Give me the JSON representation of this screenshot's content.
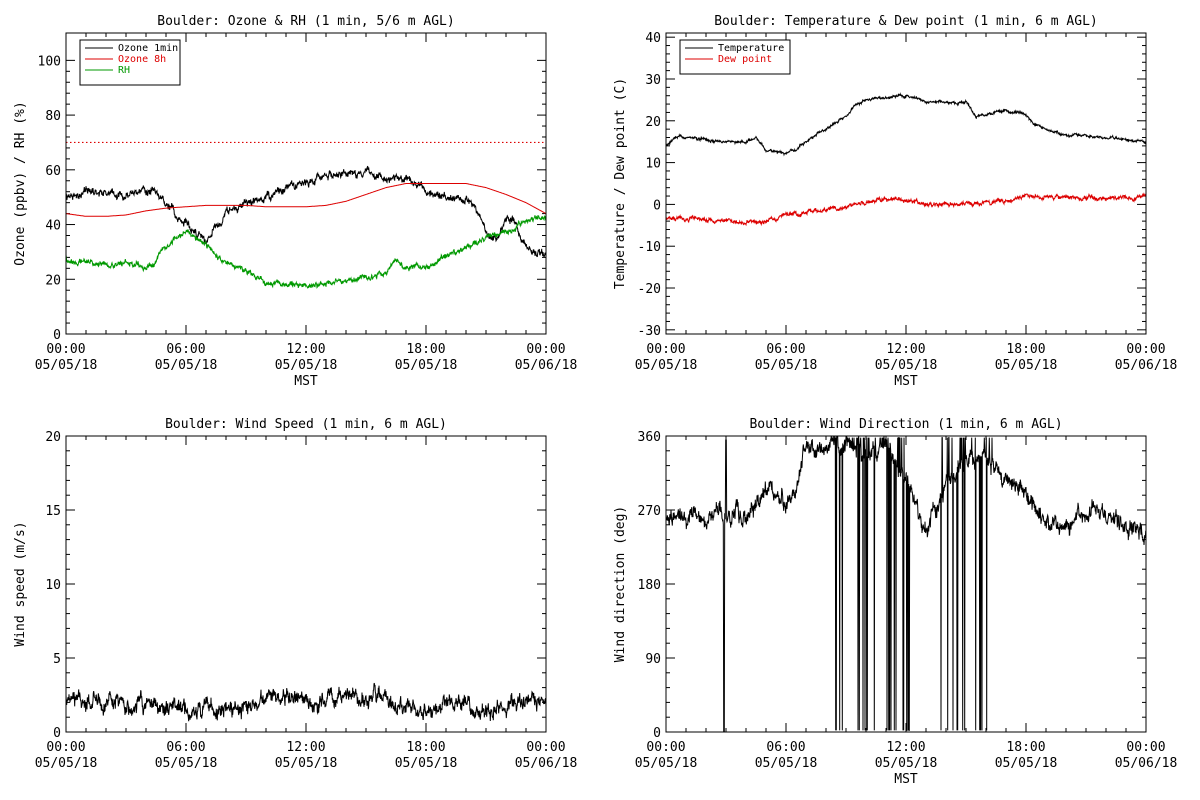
{
  "colors": {
    "black": "#000000",
    "red": "#dd0000",
    "green": "#009900",
    "bg": "#ffffff"
  },
  "x_ticks": [
    {
      "time": "00:00",
      "date": "05/05/18"
    },
    {
      "time": "06:00",
      "date": "05/05/18"
    },
    {
      "time": "12:00",
      "date": "05/05/18"
    },
    {
      "time": "18:00",
      "date": "05/05/18"
    },
    {
      "time": "00:00",
      "date": "05/06/18"
    }
  ],
  "chart_data": [
    {
      "id": "ozone_rh",
      "type": "line",
      "title": "Boulder: Ozone & RH (1 min, 5/6 m AGL)",
      "xlabel": "MST",
      "ylabel": "Ozone (ppbv) / RH (%)",
      "x_range_hours": [
        0,
        24
      ],
      "ylim": [
        0,
        110
      ],
      "y_ticks": [
        0,
        20,
        40,
        60,
        80,
        100
      ],
      "show_xlabel": true,
      "legend": [
        "Ozone 1min",
        "Ozone 8h",
        "RH"
      ],
      "reference_line": {
        "y": 70,
        "style": "dotted",
        "color": "#dd0000"
      },
      "series": [
        {
          "name": "Ozone 1min",
          "color": "#000000",
          "noise": 1.6,
          "points": [
            [
              0,
              50
            ],
            [
              1,
              52
            ],
            [
              2,
              52
            ],
            [
              3,
              50
            ],
            [
              4,
              53
            ],
            [
              4.5,
              51
            ],
            [
              5,
              47
            ],
            [
              5.3,
              46
            ],
            [
              5.5,
              42
            ],
            [
              6,
              40
            ],
            [
              6.5,
              38
            ],
            [
              7,
              33
            ],
            [
              7.4,
              38
            ],
            [
              8,
              44
            ],
            [
              9,
              48
            ],
            [
              10,
              50
            ],
            [
              11,
              53
            ],
            [
              12,
              56
            ],
            [
              13,
              58
            ],
            [
              14,
              58
            ],
            [
              14.5,
              58
            ],
            [
              15,
              60
            ],
            [
              15.5,
              58
            ],
            [
              16,
              56
            ],
            [
              17,
              57
            ],
            [
              17.5,
              55
            ],
            [
              18,
              52
            ],
            [
              19,
              50
            ],
            [
              20,
              49
            ],
            [
              20.5,
              46
            ],
            [
              21,
              38
            ],
            [
              21.5,
              34
            ],
            [
              22,
              42
            ],
            [
              22.5,
              40
            ],
            [
              23,
              31
            ],
            [
              24,
              30
            ]
          ]
        },
        {
          "name": "Ozone 8h",
          "color": "#dd0000",
          "noise": 0,
          "points": [
            [
              0,
              44
            ],
            [
              1,
              43
            ],
            [
              2,
              43
            ],
            [
              3,
              43.5
            ],
            [
              4,
              45
            ],
            [
              5,
              46
            ],
            [
              6,
              46.5
            ],
            [
              7,
              47
            ],
            [
              8,
              47
            ],
            [
              9,
              47
            ],
            [
              10,
              46.5
            ],
            [
              11,
              46.5
            ],
            [
              12,
              46.5
            ],
            [
              13,
              47
            ],
            [
              14,
              48.5
            ],
            [
              15,
              51
            ],
            [
              16,
              53.5
            ],
            [
              17,
              55
            ],
            [
              18,
              55
            ],
            [
              19,
              55
            ],
            [
              20,
              55
            ],
            [
              21,
              53.5
            ],
            [
              22,
              51
            ],
            [
              23,
              48
            ],
            [
              24,
              44
            ]
          ]
        },
        {
          "name": "RH",
          "color": "#009900",
          "noise": 1.1,
          "points": [
            [
              0,
              28
            ],
            [
              0.5,
              26
            ],
            [
              1,
              26
            ],
            [
              2,
              25
            ],
            [
              3,
              26
            ],
            [
              4,
              24
            ],
            [
              4.5,
              26
            ],
            [
              5,
              32
            ],
            [
              5.5,
              35
            ],
            [
              6,
              37
            ],
            [
              6.5,
              35
            ],
            [
              7,
              33
            ],
            [
              7.5,
              29
            ],
            [
              8,
              26
            ],
            [
              9,
              23
            ],
            [
              10,
              19
            ],
            [
              11,
              18
            ],
            [
              12,
              18
            ],
            [
              13,
              18
            ],
            [
              13.5,
              20
            ],
            [
              14,
              19
            ],
            [
              15,
              21
            ],
            [
              16,
              22
            ],
            [
              16.5,
              28
            ],
            [
              17,
              24
            ],
            [
              18,
              25
            ],
            [
              19,
              28
            ],
            [
              20,
              32
            ],
            [
              21,
              35
            ],
            [
              22,
              37
            ],
            [
              23,
              41
            ],
            [
              23.5,
              43
            ],
            [
              24,
              42
            ]
          ]
        }
      ]
    },
    {
      "id": "temp_dew",
      "type": "line",
      "title": "Boulder: Temperature & Dew point (1 min, 6 m AGL)",
      "xlabel": "MST",
      "ylabel": "Temperature / Dew point (C)",
      "x_range_hours": [
        0,
        24
      ],
      "ylim": [
        -31,
        41
      ],
      "y_ticks": [
        -30,
        -20,
        -10,
        0,
        10,
        20,
        30,
        40
      ],
      "show_xlabel": true,
      "legend": [
        "Temperature",
        "Dew point"
      ],
      "series": [
        {
          "name": "Temperature",
          "color": "#000000",
          "noise": 0.35,
          "points": [
            [
              0,
              14
            ],
            [
              0.5,
              16
            ],
            [
              1,
              16
            ],
            [
              2,
              15.5
            ],
            [
              3,
              15
            ],
            [
              4,
              15
            ],
            [
              4.5,
              16
            ],
            [
              5,
              13
            ],
            [
              6,
              12.5
            ],
            [
              6.5,
              13
            ],
            [
              7,
              15
            ],
            [
              8,
              18
            ],
            [
              9,
              21
            ],
            [
              9.5,
              24
            ],
            [
              10,
              25
            ],
            [
              11,
              25.5
            ],
            [
              12,
              26
            ],
            [
              12.5,
              25.5
            ],
            [
              13,
              24.5
            ],
            [
              14,
              24.5
            ],
            [
              14.5,
              24
            ],
            [
              15,
              24.5
            ],
            [
              15.5,
              21
            ],
            [
              16,
              21.5
            ],
            [
              17,
              22.5
            ],
            [
              18,
              21.5
            ],
            [
              18.5,
              19
            ],
            [
              19,
              18
            ],
            [
              20,
              16.5
            ],
            [
              21,
              16.5
            ],
            [
              22,
              16
            ],
            [
              23,
              15.5
            ],
            [
              24,
              15
            ]
          ]
        },
        {
          "name": "Dew point",
          "color": "#dd0000",
          "noise": 0.55,
          "points": [
            [
              0,
              -3.5
            ],
            [
              2,
              -3.5
            ],
            [
              4,
              -4.5
            ],
            [
              5,
              -4
            ],
            [
              6,
              -2.5
            ],
            [
              7,
              -2
            ],
            [
              8,
              -1.5
            ],
            [
              9,
              -1
            ],
            [
              9.5,
              0.5
            ],
            [
              10,
              0.5
            ],
            [
              11,
              1.5
            ],
            [
              12,
              1
            ],
            [
              13,
              0
            ],
            [
              14,
              0
            ],
            [
              15,
              0
            ],
            [
              16,
              0.5
            ],
            [
              17,
              1
            ],
            [
              18,
              2
            ],
            [
              19,
              1.5
            ],
            [
              20,
              2
            ],
            [
              21,
              1.5
            ],
            [
              22,
              1.5
            ],
            [
              23,
              1.5
            ],
            [
              24,
              2
            ]
          ]
        }
      ]
    },
    {
      "id": "wind_speed",
      "type": "line",
      "title": "Boulder: Wind Speed (1 min, 6 m AGL)",
      "xlabel": "",
      "ylabel": "Wind speed (m/s)",
      "x_range_hours": [
        0,
        24
      ],
      "ylim": [
        0,
        20
      ],
      "y_ticks": [
        0,
        5,
        10,
        15,
        20
      ],
      "show_xlabel": false,
      "legend": [],
      "series": [
        {
          "name": "",
          "color": "#000000",
          "noise": 0.6,
          "points": [
            [
              0,
              2
            ],
            [
              2,
              2
            ],
            [
              4,
              1.8
            ],
            [
              6,
              1.6
            ],
            [
              8,
              1.6
            ],
            [
              10,
              2
            ],
            [
              11,
              2.5
            ],
            [
              12,
              2.2
            ],
            [
              13,
              1.8
            ],
            [
              14,
              2.5
            ],
            [
              15,
              2.3
            ],
            [
              16,
              2
            ],
            [
              17,
              1.6
            ],
            [
              18,
              1.6
            ],
            [
              19,
              1.8
            ],
            [
              20,
              1.8
            ],
            [
              21,
              1.2
            ],
            [
              22,
              2
            ],
            [
              23,
              2
            ],
            [
              24,
              2
            ]
          ]
        }
      ]
    },
    {
      "id": "wind_dir",
      "type": "line",
      "title": "Boulder: Wind Direction (1 min, 6 m AGL)",
      "xlabel": "MST",
      "ylabel": "Wind direction (deg)",
      "x_range_hours": [
        0,
        24
      ],
      "ylim": [
        0,
        360
      ],
      "y_ticks": [
        0,
        90,
        180,
        270,
        360
      ],
      "show_xlabel": true,
      "legend": [],
      "series": [
        {
          "name": "",
          "color": "#000000",
          "noise": 12,
          "points": [
            [
              0,
              265
            ],
            [
              1,
              265
            ],
            [
              2,
              262
            ],
            [
              3,
              265
            ],
            [
              4,
              262
            ],
            [
              5,
              290
            ],
            [
              6,
              280
            ],
            [
              6.5,
              290
            ],
            [
              7,
              345
            ],
            [
              8,
              345
            ],
            [
              9,
              350
            ],
            [
              10,
              340
            ],
            [
              11,
              345
            ],
            [
              12,
              310
            ],
            [
              13,
              240
            ],
            [
              14,
              300
            ],
            [
              15,
              330
            ],
            [
              16,
              330
            ],
            [
              17,
              310
            ],
            [
              18,
              290
            ],
            [
              18.5,
              270
            ],
            [
              19,
              255
            ],
            [
              20,
              250
            ],
            [
              21,
              270
            ],
            [
              22,
              260
            ],
            [
              23,
              255
            ],
            [
              24,
              245
            ]
          ]
        }
      ],
      "oscillation_bands_hours": [
        [
          8.3,
          12.2
        ],
        [
          13.7,
          16.3
        ]
      ]
    }
  ]
}
